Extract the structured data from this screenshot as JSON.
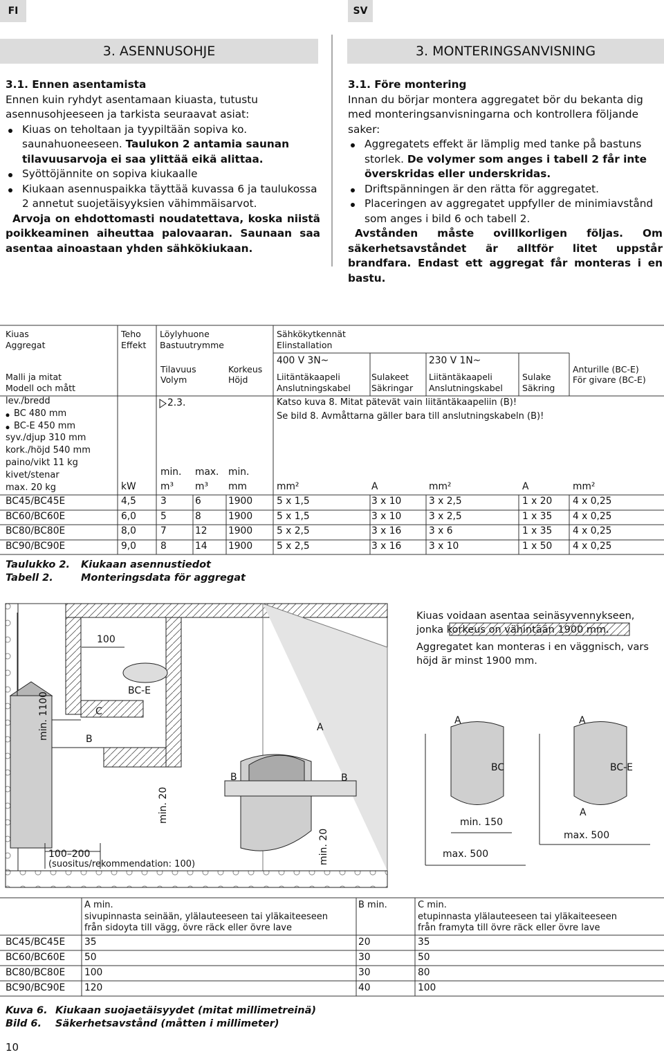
{
  "header": {
    "left_tab": "FI",
    "right_tab": "SV"
  },
  "fi": {
    "title": "3. ASENNUSOHJE",
    "subtitle": "3.1. Ennen asentamista",
    "intro": "Ennen kuin ryhdyt asentamaan kiuasta, tutustu asennusohjeeseen ja tarkista seuraavat asiat:",
    "bullets": [
      {
        "text": "Kiuas on teholtaan ja tyypiltään sopiva ko. saunahuoneeseen.",
        "bold": "Taulukon 2 antamia saunan tilavuusarvoja ei saa ylittää eikä alittaa."
      },
      {
        "text": "Syöttöjännite on sopiva kiukaalle"
      },
      {
        "text": "Kiukaan asennuspaikka täyttää kuvassa 6 ja taulukossa 2 annetut suojetäisyyksien vähimmäisarvot."
      }
    ],
    "warning": "Arvoja on ehdottomasti noudatettava, koska niistä poikkeaminen aiheuttaa palovaaran. Saunaan saa asentaa ainoastaan yhden sähkökiukaan."
  },
  "sv": {
    "title": "3. MONTERINGSANVISNING",
    "subtitle": "3.1. Före montering",
    "intro": "Innan du börjar montera aggregatet bör du bekanta dig med monteringsanvisningarna och kontrollera följande saker:",
    "bullets": [
      {
        "text": "Aggregatets effekt är lämplig med tanke på bastuns storlek.",
        "bold": "De volymer som anges i tabell 2 får inte överskridas eller underskridas."
      },
      {
        "text": "Driftspänningen är den rätta för aggregatet."
      },
      {
        "text": "Placeringen av aggregatet uppfyller de minimiavstånd som anges i bild 6 och tabell 2."
      }
    ],
    "warning": "Avstånden måste ovillkorligen följas. Om säkerhetsavståndet är alltför litet uppstår brandfara. Endast ett aggregat får monteras i en bastu."
  },
  "table": {
    "header": {
      "model_fi": "Kiuas",
      "model_sv": "Aggregat",
      "power_fi": "Teho",
      "power_sv": "Effekt",
      "room_fi": "Löylyhuone",
      "room_sv": "Bastuutrymme",
      "elec_fi": "Sähkökytkennät",
      "elec_sv": "Elinstallation",
      "v400": "400 V 3N~",
      "v230": "230 V 1N~",
      "volume_fi": "Tilavuus",
      "volume_sv": "Volym",
      "height_fi": "Korkeus",
      "height_sv": "Höjd",
      "cable_fi": "Liitäntäkaapeli",
      "cable_sv": "Anslutningskabel",
      "fuses_fi": "Sulakeet",
      "fuses_sv": "Säkringar",
      "cable2_fi": "Liitäntäkaapeli",
      "cable2_sv": "Anslutningskabel",
      "fuse_fi": "Sulake",
      "fuse_sv": "Säkring",
      "sensor_fi": "Anturille (BC-E)",
      "sensor_sv": "För givare (BC-E)",
      "dims_fi": "Malli ja mitat",
      "dims_sv": "Modell och mått"
    },
    "specs": [
      "lev./bredd",
      "BC 480 mm",
      "BC-E 450 mm",
      "syv./djup 310 mm",
      "kork./höjd 540 mm",
      "paino/vikt 11 kg",
      "kivet/stenar",
      "max. 20 kg"
    ],
    "ref": "2.3.",
    "note_fi": "Katso kuva 8. Mitat pätevät vain liitäntäkaapeliin (B)!",
    "note_sv": "Se bild 8. Avmåttarna gäller bara till anslutningskabeln (B)!",
    "limits": [
      "min.",
      "max.",
      "min."
    ],
    "units": [
      "kW",
      "m³",
      "m³",
      "mm",
      "mm²",
      "A",
      "mm²",
      "A",
      "mm²"
    ],
    "rows": [
      [
        "BC45/BC45E",
        "4,5",
        "3",
        "6",
        "1900",
        "5 x 1,5",
        "3 x 10",
        "3 x 2,5",
        "1 x 20",
        "4 x 0,25"
      ],
      [
        "BC60/BC60E",
        "6,0",
        "5",
        "8",
        "1900",
        "5 x 1,5",
        "3 x 10",
        "3 x 2,5",
        "1 x 35",
        "4 x 0,25"
      ],
      [
        "BC80/BC80E",
        "8,0",
        "7",
        "12",
        "1900",
        "5 x 2,5",
        "3 x 16",
        "3 x 6",
        "1 x 35",
        "4 x 0,25"
      ],
      [
        "BC90/BC90E",
        "9,0",
        "8",
        "14",
        "1900",
        "5 x 2,5",
        "3 x 16",
        "3 x 10",
        "1 x 50",
        "4 x 0,25"
      ]
    ]
  },
  "table_caption": {
    "label_fi": "Taulukko 2.",
    "text_fi": "Kiukaan asennustiedot",
    "label_sv": "Tabell 2.",
    "text_sv": "Monteringsdata för aggregat"
  },
  "figure": {
    "labels": [
      "100",
      "min. 1100",
      "BC-E",
      "C",
      "B",
      "min. 20",
      "100–200",
      "(suositus/rekommendation: 100)",
      "B",
      "A",
      "B",
      "min. 20",
      "A",
      "A",
      "BC",
      "BC-E",
      "A",
      "min. 150",
      "max. 500",
      "max. 500"
    ],
    "note_fi": "Kiuas voidaan asentaa seinäsyvennykseen, jonka korkeus on vähintään 1900 mm.",
    "note_sv": "Aggregatet kan monteras i en väggnisch, vars höjd är minst 1900 mm."
  },
  "distances": {
    "headers": [
      {
        "title": "A min.",
        "fi": "sivupinnasta seinään, ylälauteeseen tai yläkaiteeseen",
        "sv": "från sidoyta till vägg, övre räck eller övre lave"
      },
      {
        "title": "B min."
      },
      {
        "title": "C min.",
        "fi": "etupinnasta ylälauteeseen tai yläkaiteeseen",
        "sv": "från framyta till övre räck eller övre lave"
      }
    ],
    "rows": [
      [
        "BC45/BC45E",
        "35",
        "20",
        "35"
      ],
      [
        "BC60/BC60E",
        "50",
        "30",
        "50"
      ],
      [
        "BC80/BC80E",
        "100",
        "30",
        "80"
      ],
      [
        "BC90/BC90E",
        "120",
        "40",
        "100"
      ]
    ]
  },
  "figure_caption": {
    "label_fi": "Kuva 6.",
    "text_fi": "Kiukaan suojaetäisyydet (mitat millimetreinä)",
    "label_sv": "Bild 6.",
    "text_sv": "Säkerhetsavstånd (måtten i millimeter)"
  },
  "page_number": "10"
}
